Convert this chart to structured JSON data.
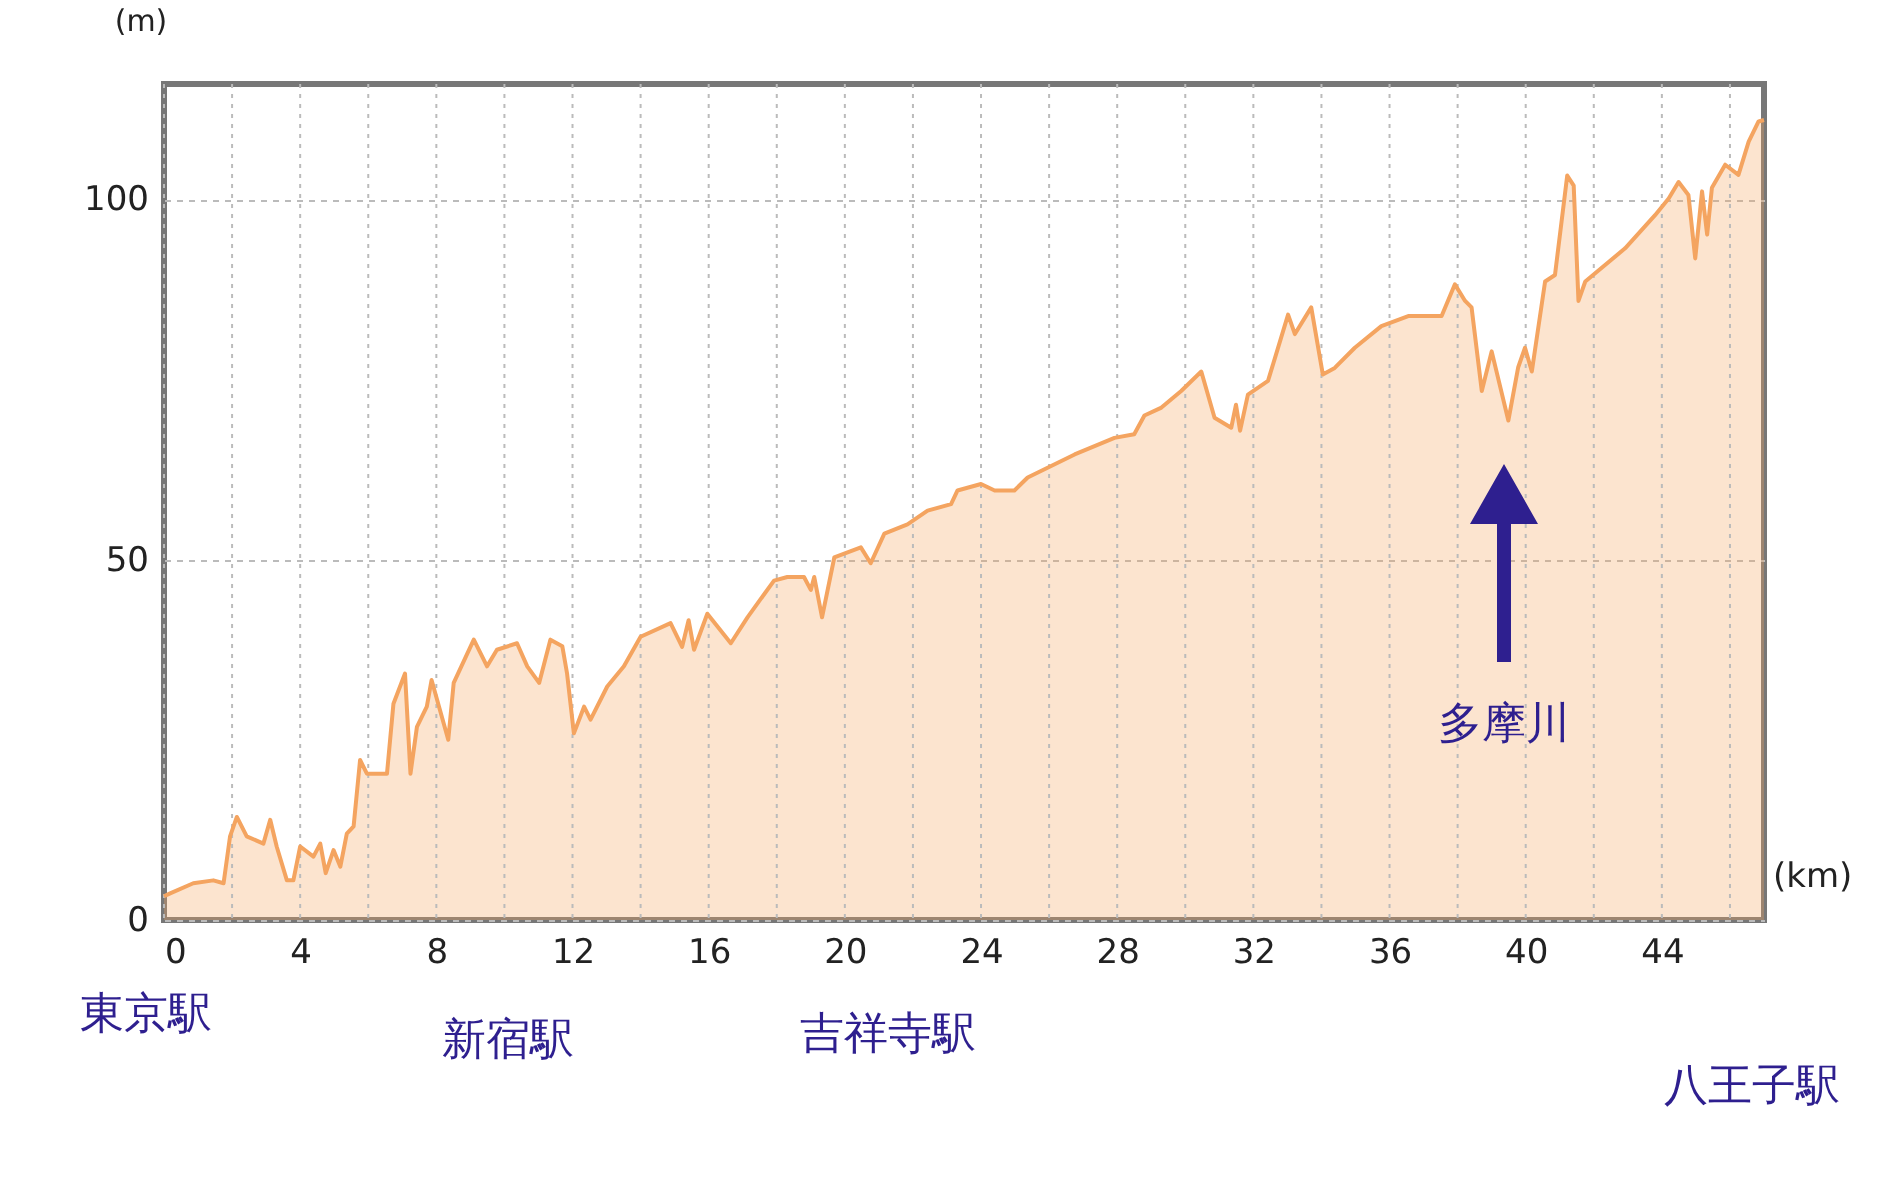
{
  "chart_data": {
    "type": "area",
    "xlabel": "(km)",
    "ylabel": "(m)",
    "xlim": [
      0,
      47
    ],
    "ylim": [
      0,
      116
    ],
    "xticks": [
      0,
      {
        "value": 2,
        "label": null
      },
      4,
      {
        "value": 6,
        "label": null
      },
      8,
      {
        "value": 10,
        "label": null
      },
      12,
      {
        "value": 14,
        "label": null
      },
      16,
      {
        "value": 18,
        "label": null
      },
      20,
      {
        "value": 22,
        "label": null
      },
      24,
      {
        "value": 26,
        "label": null
      },
      28,
      {
        "value": 30,
        "label": null
      },
      32,
      {
        "value": 34,
        "label": null
      },
      36,
      {
        "value": 38,
        "label": null
      },
      40,
      {
        "value": 42,
        "label": null
      },
      44,
      {
        "value": 46,
        "label": null
      }
    ],
    "yticks": [
      0,
      50,
      100
    ],
    "grid": true,
    "marker": "none",
    "line_style": "solid",
    "series": [
      {
        "color": "#f4a460",
        "x": [
          0,
          0.18,
          0.86,
          1.45,
          1.75,
          1.94,
          2.14,
          2.43,
          2.92,
          3.12,
          3.31,
          3.61,
          3.8,
          4.0,
          4.39,
          4.59,
          4.75,
          4.98,
          5.18,
          5.37,
          5.57,
          5.76,
          5.96,
          6.25,
          6.55,
          6.74,
          7.08,
          7.24,
          7.43,
          7.72,
          7.86,
          8.35,
          8.51,
          9.1,
          9.49,
          9.78,
          10.37,
          10.67,
          11.02,
          11.35,
          11.7,
          11.84,
          12.04,
          12.34,
          12.53,
          13.02,
          13.51,
          14.0,
          14.88,
          15.22,
          15.41,
          15.57,
          15.96,
          16.65,
          17.14,
          17.92,
          18.31,
          18.8,
          19.0,
          19.1,
          19.33,
          19.69,
          20.47,
          20.76,
          21.16,
          21.84,
          22.43,
          23.12,
          23.31,
          24.0,
          24.4,
          24.98,
          25.37,
          26.75,
          27.92,
          28.5,
          28.8,
          29.3,
          29.88,
          30.47,
          30.86,
          31.35,
          31.49,
          31.61,
          31.84,
          32.43,
          33.02,
          33.22,
          33.7,
          34.04,
          34.39,
          34.98,
          35.76,
          36.55,
          37.53,
          37.92,
          38.22,
          38.41,
          38.71,
          39.0,
          39.49,
          39.78,
          39.98,
          40.18,
          40.57,
          40.86,
          41.22,
          41.41,
          41.55,
          41.75,
          42.92,
          43.8,
          44.2,
          44.49,
          44.78,
          44.98,
          45.18,
          45.33,
          45.47,
          45.86,
          46.25,
          46.55,
          46.84,
          47
        ],
        "values": [
          3.3,
          3.7,
          5.1,
          5.5,
          5.1,
          11.6,
          14.3,
          11.6,
          10.6,
          13.9,
          10.2,
          5.5,
          5.5,
          10.2,
          8.8,
          10.6,
          6.5,
          9.7,
          7.4,
          12,
          13,
          22.2,
          20.3,
          20.3,
          20.3,
          30,
          34.2,
          20.3,
          26.8,
          29.6,
          33.3,
          25,
          32.9,
          38.9,
          35.2,
          37.5,
          38.4,
          35.2,
          32.9,
          38.9,
          38,
          34.2,
          25.9,
          29.6,
          27.8,
          32.4,
          35.2,
          39.3,
          41.2,
          37.9,
          41.6,
          37.5,
          42.5,
          38.4,
          42,
          47.1,
          47.6,
          47.6,
          45.8,
          47.6,
          42,
          50.3,
          51.7,
          49.5,
          53.6,
          54.9,
          56.8,
          57.7,
          59.6,
          60.5,
          59.6,
          59.6,
          61.4,
          64.6,
          66.9,
          67.4,
          70,
          71.1,
          73.4,
          76.1,
          69.7,
          68.3,
          71.5,
          67.9,
          72.9,
          74.8,
          84,
          81.3,
          85,
          75.7,
          76.6,
          79.4,
          82.4,
          83.8,
          83.8,
          88.2,
          85.9,
          85,
          73.4,
          78.9,
          69.3,
          76.7,
          79.4,
          76.1,
          88.6,
          89.5,
          103.3,
          101.9,
          85.9,
          88.6,
          93.2,
          97.8,
          100.1,
          102.4,
          100.6,
          91.8,
          101.1,
          95.1,
          101.6,
          104.8,
          103.4,
          108,
          110.8,
          111
        ]
      }
    ],
    "annotations": [
      "東京駅",
      "新宿駅",
      "吉祥寺駅",
      "八王子駅",
      "多摩川"
    ]
  }
}
